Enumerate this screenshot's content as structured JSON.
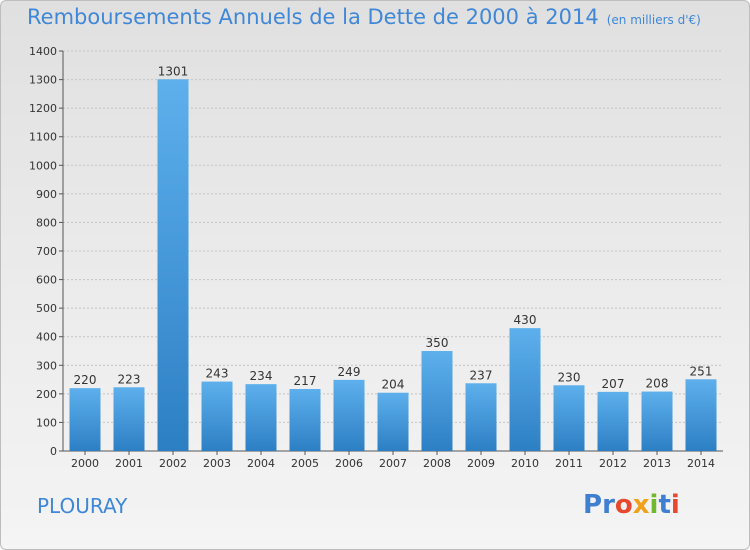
{
  "header": {
    "title": "Remboursements Annuels de la Dette de 2000 à 2014",
    "unit": "(en milliers d'€)"
  },
  "footer": {
    "commune": "PLOURAY",
    "logo_letters": [
      "P",
      "r",
      "o",
      "x",
      "i",
      "t",
      "i"
    ],
    "logo_colors": [
      "#3e7fd1",
      "#3e7fd1",
      "#e7492f",
      "#f0a01a",
      "#72b82f",
      "#3e7fd1",
      "#e7492f"
    ]
  },
  "chart_data": {
    "type": "bar",
    "title": "Remboursements Annuels de la Dette de 2000 à 2014",
    "categories": [
      "2000",
      "2001",
      "2002",
      "2003",
      "2004",
      "2005",
      "2006",
      "2007",
      "2008",
      "2009",
      "2010",
      "2011",
      "2012",
      "2013",
      "2014"
    ],
    "values": [
      220,
      223,
      1301,
      243,
      234,
      217,
      249,
      204,
      350,
      237,
      430,
      230,
      207,
      208,
      251
    ],
    "ylim": [
      0,
      1400
    ],
    "yticks": [
      0,
      100,
      200,
      300,
      400,
      500,
      600,
      700,
      800,
      900,
      1000,
      1100,
      1200,
      1300,
      1400
    ],
    "grid": true,
    "bar_color": "#4a9fe0"
  }
}
